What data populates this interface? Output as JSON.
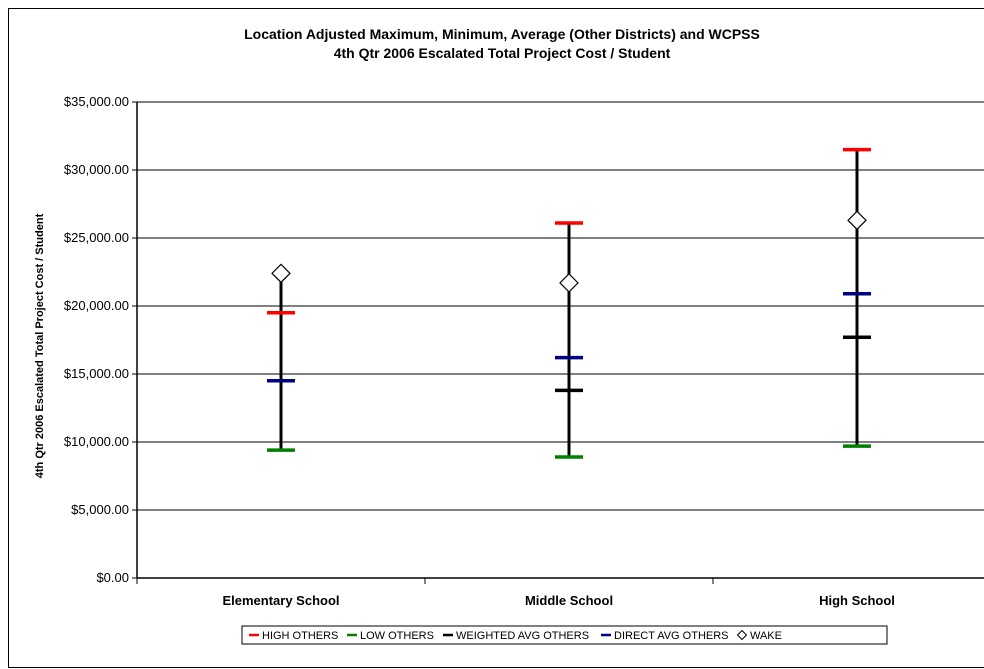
{
  "chart_data": {
    "type": "high-low",
    "title": "Location Adjusted Maximum, Minimum, Average (Other Districts) and WCPSS",
    "subtitle": "4th Qtr 2006 Escalated Total Project Cost / Student",
    "xlabel": "",
    "ylabel": "4th Qtr 2006 Escalated Total Project Cost / Student",
    "ylim": [
      0,
      35000
    ],
    "y_ticks": [
      "$0.00",
      "$5,000.00",
      "$10,000.00",
      "$15,000.00",
      "$20,000.00",
      "$25,000.00",
      "$30,000.00",
      "$35,000.00"
    ],
    "grid": true,
    "legend_position": "bottom",
    "categories": [
      "Elementary School",
      "Middle School",
      "High School"
    ],
    "series": [
      {
        "name": "HIGH OTHERS",
        "color": "#ff0000",
        "marker": "dash",
        "values": [
          19500,
          26100,
          31500
        ]
      },
      {
        "name": "LOW OTHERS",
        "color": "#008000",
        "marker": "dash",
        "values": [
          9400,
          8900,
          9700
        ]
      },
      {
        "name": "WEIGHTED AVG OTHERS",
        "color": "#000000",
        "marker": "dash",
        "values": [
          14500,
          13800,
          17700
        ]
      },
      {
        "name": "DIRECT AVG OTHERS",
        "color": "#000080",
        "marker": "dash",
        "values": [
          14500,
          16200,
          20900
        ]
      },
      {
        "name": "WAKE",
        "color": "#000000",
        "marker": "diamond",
        "values": [
          22400,
          21700,
          26300
        ]
      }
    ]
  }
}
